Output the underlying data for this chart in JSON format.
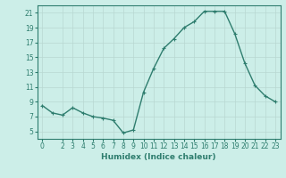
{
  "x": [
    0,
    1,
    2,
    3,
    4,
    5,
    6,
    7,
    8,
    9,
    10,
    11,
    12,
    13,
    14,
    15,
    16,
    17,
    18,
    19,
    20,
    21,
    22,
    23
  ],
  "y": [
    8.5,
    7.5,
    7.2,
    8.2,
    7.5,
    7.0,
    6.8,
    6.5,
    4.8,
    5.2,
    10.3,
    13.5,
    16.2,
    17.5,
    19.0,
    19.8,
    21.2,
    21.2,
    21.2,
    18.2,
    14.2,
    11.2,
    9.8,
    9.0
  ],
  "line_color": "#2e7d6e",
  "marker": "+",
  "marker_size": 3,
  "marker_linewidth": 0.8,
  "bg_color": "#cceee8",
  "grid_color": "#b8d8d2",
  "xlabel": "Humidex (Indice chaleur)",
  "ylim": [
    4,
    22
  ],
  "xlim": [
    -0.5,
    23.5
  ],
  "yticks": [
    5,
    7,
    9,
    11,
    13,
    15,
    17,
    19,
    21
  ],
  "xticks": [
    0,
    2,
    3,
    4,
    5,
    6,
    7,
    8,
    9,
    10,
    11,
    12,
    13,
    14,
    15,
    16,
    17,
    18,
    19,
    20,
    21,
    22,
    23
  ],
  "tick_color": "#2e7d6e",
  "label_color": "#2e7d6e",
  "xlabel_fontsize": 6.5,
  "tick_fontsize": 5.5,
  "linewidth": 1.0
}
